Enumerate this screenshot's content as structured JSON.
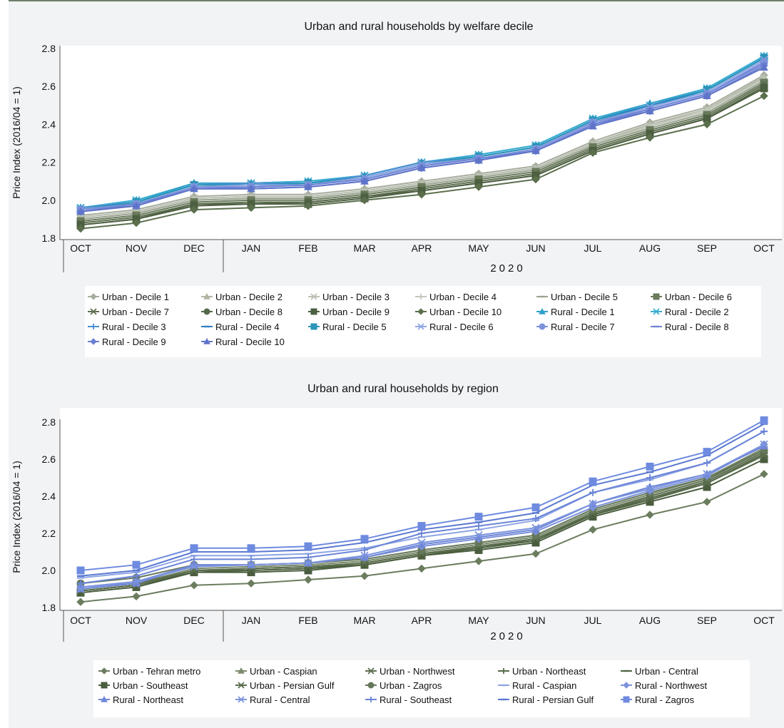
{
  "chart_data": [
    {
      "type": "line",
      "title": "Urban and rural households by welfare decile",
      "ylabel": "Price Index (2016/04 = 1)",
      "xlabel": "2020",
      "ylim": [
        1.8,
        2.8
      ],
      "yticks": [
        "1.8",
        "2.0",
        "2.2",
        "2.4",
        "2.6",
        "2.8"
      ],
      "categories": [
        "OCT",
        "NOV",
        "DEC",
        "JAN",
        "FEB",
        "MAR",
        "APR",
        "MAY",
        "JUN",
        "JUL",
        "AUG",
        "SEP",
        "OCT"
      ],
      "grid": false,
      "legend_position": "bottom",
      "series": [
        {
          "name": "Urban - Decile 1",
          "color": "#a7ad9e",
          "marker": "diamond",
          "values": [
            1.92,
            1.95,
            2.02,
            2.03,
            2.03,
            2.06,
            2.1,
            2.14,
            2.18,
            2.31,
            2.41,
            2.49,
            2.66
          ]
        },
        {
          "name": "Urban - Decile 2",
          "color": "#b0b6a6",
          "marker": "triangle",
          "values": [
            1.91,
            1.94,
            2.01,
            2.02,
            2.02,
            2.05,
            2.09,
            2.13,
            2.17,
            2.3,
            2.4,
            2.48,
            2.65
          ]
        },
        {
          "name": "Urban - Decile 3",
          "color": "#bcc1b4",
          "marker": "asterisk",
          "values": [
            1.91,
            1.94,
            2.01,
            2.02,
            2.02,
            2.05,
            2.09,
            2.13,
            2.17,
            2.3,
            2.39,
            2.48,
            2.64
          ]
        },
        {
          "name": "Urban - Decile 4",
          "color": "#c3c8bb",
          "marker": "plus",
          "values": [
            1.9,
            1.93,
            2.0,
            2.01,
            2.01,
            2.04,
            2.08,
            2.12,
            2.16,
            2.29,
            2.39,
            2.47,
            2.64
          ]
        },
        {
          "name": "Urban - Decile 5",
          "color": "#9aa391",
          "marker": "dash",
          "values": [
            1.9,
            1.93,
            2.0,
            2.01,
            2.01,
            2.04,
            2.08,
            2.12,
            2.16,
            2.29,
            2.38,
            2.46,
            2.63
          ]
        },
        {
          "name": "Urban - Decile 6",
          "color": "#6a7a5c",
          "marker": "square",
          "values": [
            1.89,
            1.92,
            1.99,
            2.0,
            2.0,
            2.03,
            2.07,
            2.11,
            2.15,
            2.28,
            2.37,
            2.45,
            2.62
          ]
        },
        {
          "name": "Urban - Decile 7",
          "color": "#5f7052",
          "marker": "asterisk",
          "values": [
            1.88,
            1.91,
            1.98,
            1.99,
            1.99,
            2.02,
            2.06,
            2.1,
            2.14,
            2.27,
            2.36,
            2.44,
            2.61
          ]
        },
        {
          "name": "Urban - Decile 8",
          "color": "#56684a",
          "marker": "circle",
          "values": [
            1.87,
            1.9,
            1.98,
            1.98,
            1.99,
            2.02,
            2.05,
            2.09,
            2.13,
            2.26,
            2.35,
            2.43,
            2.6
          ]
        },
        {
          "name": "Urban - Decile 9",
          "color": "#4d5f41",
          "marker": "square",
          "values": [
            1.87,
            1.9,
            1.97,
            1.98,
            1.98,
            2.01,
            2.05,
            2.09,
            2.13,
            2.26,
            2.35,
            2.43,
            2.59
          ]
        },
        {
          "name": "Urban - Decile 10",
          "color": "#5b6f4d",
          "marker": "diamond",
          "values": [
            1.85,
            1.88,
            1.95,
            1.96,
            1.97,
            2.0,
            2.03,
            2.07,
            2.11,
            2.25,
            2.33,
            2.4,
            2.55
          ]
        },
        {
          "name": "Rural - Decile 1",
          "color": "#2e9fc8",
          "marker": "triangle",
          "values": [
            1.96,
            2.0,
            2.09,
            2.09,
            2.1,
            2.13,
            2.2,
            2.24,
            2.29,
            2.43,
            2.51,
            2.59,
            2.76
          ]
        },
        {
          "name": "Rural - Decile 2",
          "color": "#38aed3",
          "marker": "asterisk",
          "values": [
            1.96,
            2.0,
            2.08,
            2.09,
            2.1,
            2.13,
            2.2,
            2.24,
            2.29,
            2.43,
            2.5,
            2.59,
            2.76
          ]
        },
        {
          "name": "Rural - Decile 3",
          "color": "#4a8fd0",
          "marker": "plus",
          "values": [
            1.96,
            1.99,
            2.08,
            2.09,
            2.09,
            2.13,
            2.2,
            2.23,
            2.28,
            2.42,
            2.5,
            2.58,
            2.75
          ]
        },
        {
          "name": "Rural - Decile 4",
          "color": "#2f7fc1",
          "marker": "dash",
          "values": [
            1.95,
            1.99,
            2.08,
            2.08,
            2.09,
            2.12,
            2.19,
            2.23,
            2.28,
            2.42,
            2.5,
            2.58,
            2.75
          ]
        },
        {
          "name": "Rural - Decile 5",
          "color": "#2b95b8",
          "marker": "square",
          "values": [
            1.95,
            1.99,
            2.08,
            2.08,
            2.09,
            2.12,
            2.19,
            2.23,
            2.28,
            2.42,
            2.49,
            2.58,
            2.75
          ]
        },
        {
          "name": "Rural - Decile 6",
          "color": "#8fa6e6",
          "marker": "asterisk",
          "values": [
            1.95,
            1.98,
            2.07,
            2.08,
            2.08,
            2.12,
            2.19,
            2.22,
            2.27,
            2.41,
            2.49,
            2.57,
            2.74
          ]
        },
        {
          "name": "Rural - Decile 7",
          "color": "#7d92dc",
          "marker": "circle",
          "values": [
            1.95,
            1.98,
            2.07,
            2.07,
            2.08,
            2.11,
            2.18,
            2.22,
            2.27,
            2.41,
            2.48,
            2.56,
            2.73
          ]
        },
        {
          "name": "Rural - Decile 8",
          "color": "#6f84d4",
          "marker": "dash",
          "values": [
            1.94,
            1.98,
            2.06,
            2.07,
            2.08,
            2.11,
            2.18,
            2.22,
            2.26,
            2.4,
            2.48,
            2.56,
            2.72
          ]
        },
        {
          "name": "Rural - Decile 9",
          "color": "#6a80d2",
          "marker": "diamond",
          "values": [
            1.94,
            1.97,
            2.06,
            2.06,
            2.07,
            2.1,
            2.17,
            2.21,
            2.26,
            2.4,
            2.47,
            2.55,
            2.71
          ]
        },
        {
          "name": "Rural - Decile 10",
          "color": "#5f74c9",
          "marker": "triangle",
          "values": [
            1.94,
            1.97,
            2.06,
            2.06,
            2.07,
            2.1,
            2.17,
            2.21,
            2.26,
            2.39,
            2.47,
            2.55,
            2.7
          ]
        }
      ]
    },
    {
      "type": "line",
      "title": "Urban and rural households by region",
      "ylabel": "Price Index (2016/04 = 1)",
      "xlabel": "2020",
      "ylim": [
        1.8,
        2.8
      ],
      "yticks": [
        "1.8",
        "2.0",
        "2.2",
        "2.4",
        "2.6",
        "2.8"
      ],
      "categories": [
        "OCT",
        "NOV",
        "DEC",
        "JAN",
        "FEB",
        "MAR",
        "APR",
        "MAY",
        "JUN",
        "JUL",
        "AUG",
        "SEP",
        "OCT"
      ],
      "grid": false,
      "legend_position": "bottom",
      "series": [
        {
          "name": "Urban - Tehran metro",
          "color": "#6b7d5e",
          "marker": "diamond",
          "values": [
            1.83,
            1.86,
            1.92,
            1.93,
            1.95,
            1.97,
            2.01,
            2.05,
            2.09,
            2.22,
            2.3,
            2.37,
            2.52
          ]
        },
        {
          "name": "Urban - Caspian",
          "color": "#7a8a6c",
          "marker": "triangle",
          "values": [
            1.9,
            1.93,
            2.01,
            2.02,
            2.03,
            2.05,
            2.1,
            2.14,
            2.18,
            2.32,
            2.41,
            2.5,
            2.66
          ]
        },
        {
          "name": "Urban - Northwest",
          "color": "#5f7052",
          "marker": "asterisk",
          "values": [
            1.9,
            1.93,
            2.0,
            2.01,
            2.02,
            2.04,
            2.09,
            2.13,
            2.17,
            2.31,
            2.4,
            2.49,
            2.65
          ]
        },
        {
          "name": "Urban - Northeast",
          "color": "#566a48",
          "marker": "plus",
          "values": [
            1.89,
            1.92,
            2.0,
            2.0,
            2.01,
            2.04,
            2.09,
            2.12,
            2.17,
            2.3,
            2.39,
            2.48,
            2.64
          ]
        },
        {
          "name": "Urban - Central",
          "color": "#4f6342",
          "marker": "dash",
          "values": [
            1.89,
            1.92,
            1.99,
            2.0,
            2.01,
            2.03,
            2.08,
            2.12,
            2.16,
            2.3,
            2.38,
            2.47,
            2.63
          ]
        },
        {
          "name": "Urban - Southeast",
          "color": "#4a5d3e",
          "marker": "square",
          "values": [
            1.88,
            1.91,
            1.99,
            1.99,
            2.0,
            2.03,
            2.08,
            2.11,
            2.15,
            2.29,
            2.37,
            2.45,
            2.6
          ]
        },
        {
          "name": "Urban - Persian Gulf",
          "color": "#5b6e4e",
          "marker": "asterisk",
          "values": [
            1.89,
            1.92,
            2.0,
            2.01,
            2.02,
            2.04,
            2.09,
            2.13,
            2.17,
            2.31,
            2.39,
            2.47,
            2.62
          ]
        },
        {
          "name": "Urban - Zagros",
          "color": "#66785a",
          "marker": "circle",
          "values": [
            1.93,
            1.96,
            2.03,
            2.03,
            2.04,
            2.06,
            2.11,
            2.15,
            2.19,
            2.33,
            2.42,
            2.5,
            2.65
          ]
        },
        {
          "name": "Rural - Caspian",
          "color": "#8ea4e4",
          "marker": "dash",
          "values": [
            1.96,
            1.99,
            2.08,
            2.08,
            2.09,
            2.12,
            2.18,
            2.22,
            2.27,
            2.42,
            2.49,
            2.58,
            2.75
          ]
        },
        {
          "name": "Rural - Northwest",
          "color": "#7b91dc",
          "marker": "diamond",
          "values": [
            1.91,
            1.94,
            2.03,
            2.03,
            2.04,
            2.07,
            2.13,
            2.17,
            2.21,
            2.34,
            2.43,
            2.51,
            2.68
          ]
        },
        {
          "name": "Rural - Northeast",
          "color": "#6f86d6",
          "marker": "triangle",
          "values": [
            1.9,
            1.93,
            2.03,
            2.03,
            2.04,
            2.07,
            2.14,
            2.18,
            2.22,
            2.36,
            2.45,
            2.52,
            2.67
          ]
        },
        {
          "name": "Rural - Central",
          "color": "#7b93de",
          "marker": "asterisk",
          "values": [
            1.9,
            1.94,
            2.02,
            2.03,
            2.04,
            2.08,
            2.15,
            2.19,
            2.23,
            2.36,
            2.44,
            2.52,
            2.68
          ]
        },
        {
          "name": "Rural - Southeast",
          "color": "#6a84d8",
          "marker": "plus",
          "values": [
            1.93,
            1.97,
            2.06,
            2.06,
            2.07,
            2.11,
            2.2,
            2.24,
            2.28,
            2.42,
            2.5,
            2.58,
            2.75
          ]
        },
        {
          "name": "Rural - Persian Gulf",
          "color": "#5a78d0",
          "marker": "dash",
          "values": [
            1.97,
            2.0,
            2.1,
            2.1,
            2.11,
            2.15,
            2.22,
            2.26,
            2.31,
            2.46,
            2.53,
            2.62,
            2.79
          ]
        },
        {
          "name": "Rural - Zagros",
          "color": "#6f8be0",
          "marker": "square",
          "values": [
            2.0,
            2.03,
            2.12,
            2.12,
            2.13,
            2.17,
            2.24,
            2.29,
            2.34,
            2.48,
            2.56,
            2.64,
            2.81
          ]
        }
      ]
    }
  ]
}
